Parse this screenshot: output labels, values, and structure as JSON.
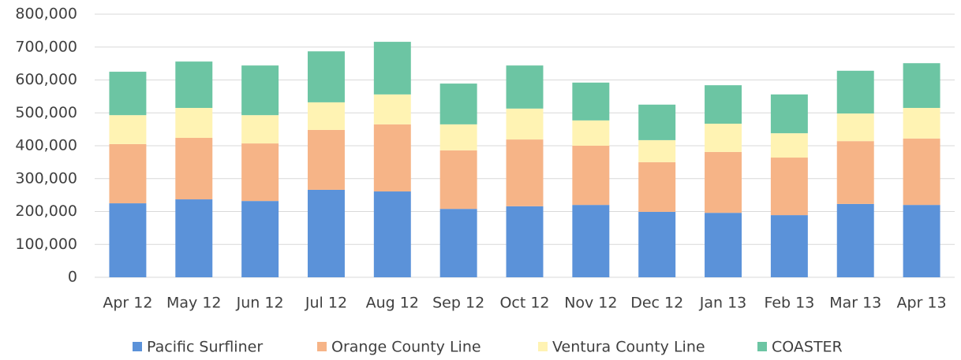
{
  "chart_data": {
    "type": "stacked-bar",
    "categories": [
      "Apr 12",
      "May 12",
      "Jun 12",
      "Jul 12",
      "Aug 12",
      "Sep 12",
      "Oct 12",
      "Nov 12",
      "Dec 12",
      "Jan 13",
      "Feb 13",
      "Mar 13",
      "Apr 13"
    ],
    "series": [
      {
        "name": "Pacific Surfliner",
        "color": "#5b92d9",
        "values": [
          225000,
          237000,
          232000,
          266000,
          261000,
          208000,
          216000,
          220000,
          199000,
          196000,
          189000,
          223000,
          220000
        ]
      },
      {
        "name": "Orange County Line",
        "color": "#f6b487",
        "values": [
          180000,
          187000,
          175000,
          182000,
          204000,
          178000,
          203000,
          180000,
          151000,
          185000,
          175000,
          191000,
          202000
        ]
      },
      {
        "name": "Ventura County Line",
        "color": "#fff3b3",
        "values": [
          88000,
          91000,
          86000,
          84000,
          91000,
          79000,
          94000,
          77000,
          67000,
          86000,
          74000,
          84000,
          93000
        ]
      },
      {
        "name": "COASTER",
        "color": "#6cc5a3",
        "values": [
          132000,
          141000,
          151000,
          155000,
          160000,
          124000,
          131000,
          115000,
          108000,
          117000,
          118000,
          130000,
          136000
        ]
      }
    ],
    "ylim": [
      0,
      800000
    ],
    "yticks": [
      0,
      {
        "value": 100000,
        "label": "100,000"
      },
      {
        "value": 200000,
        "label": "200,000"
      },
      {
        "value": 300000,
        "label": "300,000"
      },
      {
        "value": 400000,
        "label": "400,000"
      },
      {
        "value": 500000,
        "label": "500,000"
      },
      {
        "value": 600000,
        "label": "600,000"
      },
      {
        "value": 700000,
        "label": "700,000"
      },
      {
        "value": 800000,
        "label": "800,000"
      }
    ],
    "grid": true,
    "legend": "bottom"
  }
}
